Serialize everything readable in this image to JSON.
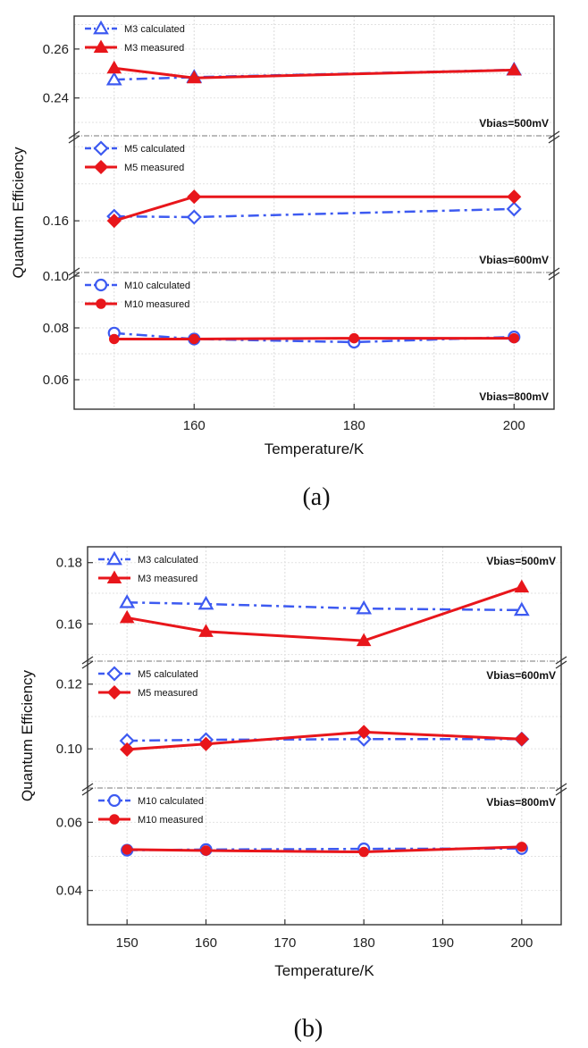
{
  "chart_data": [
    {
      "id": "a",
      "type": "line",
      "caption": "(a)",
      "xlabel": "Temperature/K",
      "ylabel": "Quantum Efficiency",
      "xlim": [
        145,
        205
      ],
      "x_ticks": [
        160,
        180,
        200
      ],
      "grid": true,
      "legend_position": "top-left of each panel",
      "panels": [
        {
          "ylim": [
            0.226,
            0.272
          ],
          "y_ticks": [
            0.24,
            0.26
          ],
          "y_tick_labels": [
            "0.24",
            "0.26"
          ],
          "annotation": "Vbias=500mV",
          "annotation_position": "bottom-right",
          "series": [
            {
              "name": "M3 calculated",
              "marker": "triangle-open",
              "style": "dashdot",
              "color": "#3d5af1",
              "x": [
                150,
                160,
                200
              ],
              "y": [
                0.2475,
                0.2485,
                0.2515
              ]
            },
            {
              "name": "M3 measured",
              "marker": "triangle-filled",
              "style": "solid",
              "color": "#e8161b",
              "x": [
                150,
                160,
                200
              ],
              "y": [
                0.2522,
                0.2482,
                0.2514
              ]
            }
          ]
        },
        {
          "ylim": [
            0.147,
            0.182
          ],
          "y_ticks": [
            0.16
          ],
          "y_tick_labels": [
            "0.16"
          ],
          "annotation": "Vbias=600mV",
          "annotation_position": "bottom-right",
          "series": [
            {
              "name": "M5 calculated",
              "marker": "diamond-open",
              "style": "dashdot",
              "color": "#3d5af1",
              "x": [
                150,
                160,
                200
              ],
              "y": [
                0.1612,
                0.161,
                0.1632
              ]
            },
            {
              "name": "M5 measured",
              "marker": "diamond-filled",
              "style": "solid",
              "color": "#e8161b",
              "x": [
                150,
                160,
                200
              ],
              "y": [
                0.16,
                0.1665,
                0.1665
              ]
            }
          ]
        },
        {
          "ylim": [
            0.05,
            0.1
          ],
          "y_ticks": [
            0.06,
            0.08,
            0.1
          ],
          "y_tick_labels": [
            "0.06",
            "0.08",
            "0.10"
          ],
          "annotation": "Vbias=800mV",
          "annotation_position": "bottom-right",
          "series": [
            {
              "name": "M10 calculated",
              "marker": "circle-open",
              "style": "dashdot",
              "color": "#3d5af1",
              "x": [
                150,
                160,
                180,
                200
              ],
              "y": [
                0.078,
                0.0757,
                0.0745,
                0.0765
              ]
            },
            {
              "name": "M10 measured",
              "marker": "circle-filled",
              "style": "solid",
              "color": "#e8161b",
              "x": [
                150,
                160,
                180,
                200
              ],
              "y": [
                0.0757,
                0.0757,
                0.076,
                0.076
              ]
            }
          ]
        }
      ]
    },
    {
      "id": "b",
      "type": "line",
      "caption": "(b)",
      "xlabel": "Temperature/K",
      "ylabel": "Quantum Efficiency",
      "xlim": [
        145,
        205
      ],
      "x_ticks": [
        150,
        160,
        170,
        180,
        190,
        200
      ],
      "grid": true,
      "legend_position": "top-left of each panel",
      "panels": [
        {
          "ylim": [
            0.149,
            0.184
          ],
          "y_ticks": [
            0.16,
            0.18
          ],
          "y_tick_labels": [
            "0.16",
            "0.18"
          ],
          "annotation": "Vbias=500mV",
          "annotation_position": "top-right",
          "series": [
            {
              "name": "M3 calculated",
              "marker": "triangle-open",
              "style": "dashdot",
              "color": "#3d5af1",
              "x": [
                150,
                160,
                180,
                200
              ],
              "y": [
                0.167,
                0.1665,
                0.165,
                0.1645
              ]
            },
            {
              "name": "M3 measured",
              "marker": "triangle-filled",
              "style": "solid",
              "color": "#e8161b",
              "x": [
                150,
                160,
                180,
                200
              ],
              "y": [
                0.162,
                0.1575,
                0.1545,
                0.172
              ]
            }
          ]
        },
        {
          "ylim": [
            0.089,
            0.126
          ],
          "y_ticks": [
            0.1,
            0.12
          ],
          "y_tick_labels": [
            "0.10",
            "0.12"
          ],
          "annotation": "Vbias=600mV",
          "annotation_position": "top-right",
          "series": [
            {
              "name": "M5 calculated",
              "marker": "diamond-open",
              "style": "dashdot",
              "color": "#3d5af1",
              "x": [
                150,
                160,
                180,
                200
              ],
              "y": [
                0.1025,
                0.1028,
                0.103,
                0.103
              ]
            },
            {
              "name": "M5 measured",
              "marker": "diamond-filled",
              "style": "solid",
              "color": "#e8161b",
              "x": [
                150,
                160,
                180,
                200
              ],
              "y": [
                0.0998,
                0.1015,
                0.1052,
                0.103
              ]
            }
          ]
        },
        {
          "ylim": [
            0.031,
            0.069
          ],
          "y_ticks": [
            0.04,
            0.06
          ],
          "y_tick_labels": [
            "0.04",
            "0.06"
          ],
          "annotation": "Vbias=800mV",
          "annotation_position": "top-right",
          "series": [
            {
              "name": "M10 calculated",
              "marker": "circle-open",
              "style": "dashdot",
              "color": "#3d5af1",
              "x": [
                150,
                160,
                180,
                200
              ],
              "y": [
                0.0518,
                0.052,
                0.0522,
                0.0523
              ]
            },
            {
              "name": "M10 measured",
              "marker": "circle-filled",
              "style": "solid",
              "color": "#e8161b",
              "x": [
                150,
                160,
                180,
                200
              ],
              "y": [
                0.052,
                0.0517,
                0.0513,
                0.0528
              ]
            }
          ]
        }
      ]
    }
  ]
}
